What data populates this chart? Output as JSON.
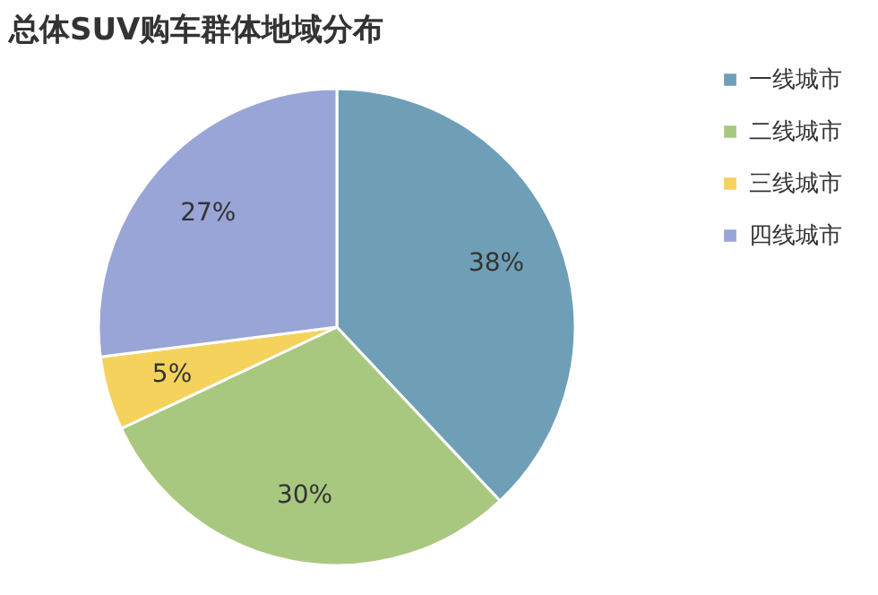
{
  "chart_data": {
    "type": "pie",
    "title": "总体SUV购车群体地域分布",
    "categories": [
      "一线城市",
      "二线城市",
      "三线城市",
      "四线城市"
    ],
    "values": [
      38,
      30,
      5,
      27
    ],
    "colors": [
      "#6e9fb6",
      "#a8c87f",
      "#f4d25c",
      "#99a5d6"
    ],
    "value_labels": [
      "38%",
      "30%",
      "5%",
      "27%"
    ],
    "legend": "right"
  }
}
